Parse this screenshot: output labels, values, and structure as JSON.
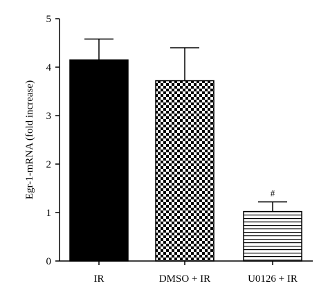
{
  "chart_data": {
    "type": "bar",
    "title": "",
    "xlabel": "",
    "ylabel": "Egr-1-mRNA (fold increase)",
    "ylim": [
      0,
      5
    ],
    "yticks": [
      0,
      1,
      2,
      3,
      4,
      5
    ],
    "grid": false,
    "categories": [
      "IR",
      "DMSO + IR",
      "U0126 + IR"
    ],
    "values": [
      4.15,
      3.72,
      1.02
    ],
    "errors": [
      0.43,
      0.68,
      0.2
    ],
    "patterns": [
      "solid-black",
      "checkerboard",
      "horizontal-stripes"
    ],
    "annotations": [
      "",
      "",
      "#"
    ]
  }
}
